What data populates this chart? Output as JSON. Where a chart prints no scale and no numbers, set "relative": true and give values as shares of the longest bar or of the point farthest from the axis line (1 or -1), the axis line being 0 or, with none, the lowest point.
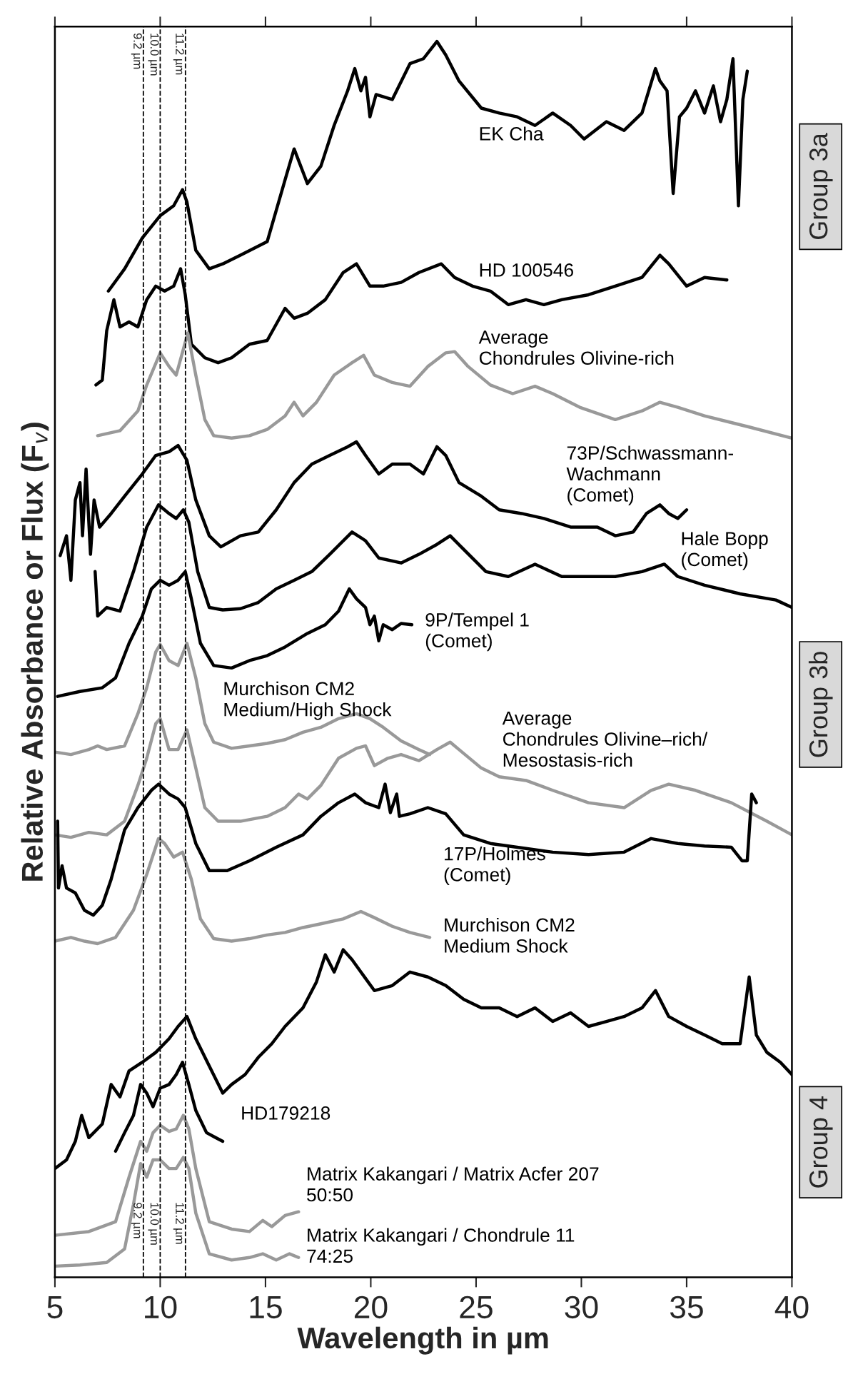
{
  "chart_data": {
    "type": "line",
    "relative": true,
    "xlabel": "Wavelength in µm",
    "ylabel": "Relative Absorbance or Flux (F$_{v}$)",
    "xlim": [
      5,
      40
    ],
    "xticks": [
      5,
      10,
      15,
      20,
      25,
      30,
      35,
      40
    ],
    "grid": false,
    "legend": false,
    "marker": "none",
    "line_style": "solid",
    "annotations": [
      "Group 3a",
      "Group 3b",
      "Group 4"
    ],
    "ref_lines": [
      {
        "axis": "x",
        "value": 9.2,
        "label": "9.2 µm",
        "color": "#000000",
        "line_style": "dashed"
      },
      {
        "axis": "x",
        "value": 10.0,
        "label": "10.0 µm",
        "color": "#000000",
        "line_style": "dashed"
      },
      {
        "axis": "x",
        "value": 11.2,
        "label": "11.2 µm",
        "color": "#000000",
        "line_style": "dashed"
      }
    ],
    "series": [
      {
        "name": "EK Cha",
        "color": "#000000",
        "x": [
          7.54,
          8.31,
          9.15,
          10.0,
          10.64,
          11.06,
          11.27,
          11.69,
          12.33,
          12.97,
          13.81,
          15.08,
          15.93,
          16.36,
          16.99,
          17.63,
          18.26,
          18.9,
          19.24,
          19.53,
          19.75,
          19.96,
          20.25,
          21.02,
          21.86,
          22.5,
          23.14,
          23.56,
          24.19,
          25.25,
          26.1,
          26.95,
          27.8,
          28.64,
          29.49,
          30.13,
          31.19,
          32.03,
          32.88,
          33.52,
          33.73,
          34.07,
          34.36,
          34.66,
          35.0,
          35.42,
          35.85,
          36.27,
          36.61,
          36.91,
          37.2,
          37.46,
          37.67,
          37.88
        ],
        "values": [
          0.798,
          0.816,
          0.841,
          0.859,
          0.867,
          0.88,
          0.87,
          0.831,
          0.816,
          0.82,
          0.827,
          0.838,
          0.888,
          0.913,
          0.885,
          0.899,
          0.932,
          0.96,
          0.978,
          0.96,
          0.971,
          0.939,
          0.957,
          0.953,
          0.982,
          0.986,
          1.0,
          0.989,
          0.968,
          0.946,
          0.942,
          0.939,
          0.932,
          0.942,
          0.932,
          0.921,
          0.935,
          0.928,
          0.942,
          0.978,
          0.968,
          0.96,
          0.877,
          0.939,
          0.946,
          0.96,
          0.942,
          0.964,
          0.935,
          0.953,
          0.986,
          0.867,
          0.953,
          0.976
        ]
      },
      {
        "name": "HD 100546",
        "color": "#000000",
        "x": [
          6.95,
          7.25,
          7.46,
          7.8,
          8.09,
          8.52,
          8.94,
          9.36,
          9.79,
          10.21,
          10.64,
          10.97,
          11.19,
          11.48,
          12.12,
          12.75,
          13.39,
          14.24,
          15.08,
          15.93,
          16.36,
          16.99,
          17.84,
          18.69,
          19.32,
          19.96,
          20.59,
          21.44,
          22.29,
          23.35,
          23.98,
          24.83,
          25.68,
          26.53,
          27.37,
          28.22,
          29.07,
          30.34,
          31.61,
          32.88,
          33.73,
          34.15,
          35.0,
          35.85,
          36.91
        ],
        "values": [
          0.722,
          0.726,
          0.766,
          0.791,
          0.769,
          0.773,
          0.769,
          0.791,
          0.802,
          0.798,
          0.802,
          0.816,
          0.795,
          0.755,
          0.744,
          0.74,
          0.744,
          0.755,
          0.758,
          0.784,
          0.776,
          0.78,
          0.791,
          0.813,
          0.82,
          0.802,
          0.802,
          0.805,
          0.813,
          0.82,
          0.809,
          0.802,
          0.798,
          0.787,
          0.791,
          0.787,
          0.791,
          0.795,
          0.802,
          0.809,
          0.827,
          0.82,
          0.802,
          0.809,
          0.807
        ]
      },
      {
        "name": "Average\nChondrules Olivine-rich",
        "color": "#999999",
        "x": [
          7.03,
          8.09,
          8.94,
          9.36,
          10.0,
          10.42,
          10.76,
          11.31,
          11.69,
          12.12,
          12.54,
          13.39,
          14.24,
          15.08,
          15.93,
          16.36,
          16.78,
          17.42,
          18.26,
          19.11,
          19.66,
          20.17,
          21.02,
          21.86,
          22.71,
          23.56,
          23.98,
          24.62,
          25.68,
          26.74,
          27.8,
          28.64,
          29.92,
          31.61,
          32.88,
          33.73,
          34.58,
          35.85,
          37.97,
          40.0
        ],
        "values": [
          0.681,
          0.685,
          0.701,
          0.722,
          0.748,
          0.737,
          0.73,
          0.764,
          0.73,
          0.694,
          0.681,
          0.679,
          0.681,
          0.686,
          0.697,
          0.708,
          0.697,
          0.708,
          0.73,
          0.74,
          0.746,
          0.73,
          0.724,
          0.721,
          0.737,
          0.748,
          0.749,
          0.737,
          0.722,
          0.715,
          0.721,
          0.715,
          0.704,
          0.694,
          0.701,
          0.708,
          0.704,
          0.697,
          0.688,
          0.679
        ]
      },
      {
        "name": "73P/Schwassmann-\nWachmann\n(Comet)",
        "color": "#000000",
        "x": [
          5.25,
          5.55,
          5.76,
          5.97,
          6.19,
          6.31,
          6.48,
          6.69,
          6.86,
          7.12,
          7.67,
          8.31,
          9.15,
          9.79,
          10.42,
          10.85,
          11.27,
          11.69,
          12.33,
          12.88,
          13.81,
          14.66,
          15.51,
          16.36,
          17.2,
          18.05,
          18.9,
          19.32,
          19.75,
          20.38,
          21.02,
          21.86,
          22.5,
          23.14,
          23.56,
          24.19,
          25.25,
          26.1,
          27.16,
          28.22,
          29.49,
          30.76,
          31.61,
          32.46,
          33.09,
          33.73,
          34.15,
          34.58,
          35.0
        ],
        "values": [
          0.584,
          0.6,
          0.564,
          0.629,
          0.643,
          0.6,
          0.654,
          0.585,
          0.629,
          0.607,
          0.618,
          0.632,
          0.65,
          0.665,
          0.668,
          0.673,
          0.661,
          0.629,
          0.6,
          0.591,
          0.6,
          0.603,
          0.621,
          0.643,
          0.658,
          0.665,
          0.672,
          0.676,
          0.665,
          0.65,
          0.658,
          0.658,
          0.65,
          0.672,
          0.665,
          0.643,
          0.632,
          0.621,
          0.618,
          0.614,
          0.607,
          0.607,
          0.6,
          0.603,
          0.618,
          0.625,
          0.618,
          0.614,
          0.621
        ]
      },
      {
        "name": "Hale Bopp\n(Comet)",
        "color": "#000000",
        "x": [
          6.91,
          7.03,
          7.46,
          8.09,
          8.73,
          9.36,
          9.92,
          10.42,
          10.76,
          11.1,
          11.36,
          11.78,
          12.33,
          12.97,
          13.81,
          14.66,
          15.51,
          16.36,
          17.2,
          18.05,
          19.11,
          19.75,
          20.38,
          21.44,
          22.29,
          23.14,
          23.77,
          24.41,
          25.47,
          26.53,
          27.8,
          29.07,
          30.34,
          31.61,
          32.88,
          33.94,
          34.58,
          35.85,
          37.54,
          39.24,
          40.0
        ],
        "values": [
          0.571,
          0.535,
          0.542,
          0.539,
          0.571,
          0.607,
          0.625,
          0.618,
          0.614,
          0.621,
          0.611,
          0.571,
          0.542,
          0.54,
          0.541,
          0.546,
          0.557,
          0.564,
          0.571,
          0.585,
          0.603,
          0.596,
          0.582,
          0.578,
          0.585,
          0.593,
          0.6,
          0.589,
          0.571,
          0.567,
          0.577,
          0.567,
          0.567,
          0.567,
          0.571,
          0.577,
          0.567,
          0.56,
          0.553,
          0.548,
          0.542
        ]
      },
      {
        "name": "9P/Tempel 1\n(Comet)",
        "color": "#000000",
        "x": [
          5.13,
          6.19,
          7.25,
          7.88,
          8.52,
          9.15,
          9.58,
          10.0,
          10.42,
          10.85,
          11.19,
          11.48,
          11.91,
          12.54,
          13.39,
          14.24,
          15.08,
          15.93,
          16.99,
          17.84,
          18.47,
          18.98,
          19.32,
          19.75,
          19.96,
          20.17,
          20.38,
          20.59,
          21.02,
          21.44,
          21.95
        ],
        "values": [
          0.47,
          0.474,
          0.477,
          0.485,
          0.513,
          0.535,
          0.557,
          0.564,
          0.56,
          0.564,
          0.571,
          0.549,
          0.513,
          0.495,
          0.493,
          0.499,
          0.503,
          0.51,
          0.521,
          0.528,
          0.539,
          0.557,
          0.549,
          0.542,
          0.528,
          0.535,
          0.515,
          0.528,
          0.524,
          0.529,
          0.528
        ]
      },
      {
        "name": "Murchison CM2\nMedium/High Shock",
        "color": "#999999",
        "x": [
          5.0,
          5.76,
          6.61,
          7.03,
          7.46,
          8.31,
          8.94,
          9.36,
          9.79,
          10.0,
          10.42,
          10.85,
          11.27,
          11.69,
          12.12,
          12.54,
          13.39,
          14.24,
          15.08,
          15.93,
          16.78,
          17.63,
          18.47,
          19.32,
          19.96,
          20.59,
          21.44,
          22.29,
          22.8
        ],
        "values": [
          0.425,
          0.423,
          0.427,
          0.43,
          0.427,
          0.43,
          0.456,
          0.477,
          0.506,
          0.512,
          0.499,
          0.495,
          0.513,
          0.485,
          0.448,
          0.433,
          0.428,
          0.43,
          0.432,
          0.435,
          0.441,
          0.445,
          0.452,
          0.456,
          0.452,
          0.445,
          0.434,
          0.427,
          0.423
        ]
      },
      {
        "name": "Average\nChondrules Olivine–rich/\nMesostasis-rich",
        "color": "#999999",
        "x": [
          5.0,
          5.76,
          6.61,
          7.46,
          8.31,
          8.94,
          9.36,
          9.79,
          10.0,
          10.42,
          10.85,
          11.27,
          11.69,
          12.12,
          12.75,
          13.81,
          15.08,
          15.93,
          16.57,
          16.99,
          17.63,
          18.47,
          19.32,
          19.75,
          20.17,
          20.81,
          21.44,
          22.29,
          23.14,
          23.77,
          24.19,
          25.25,
          26.1,
          27.37,
          28.64,
          30.34,
          32.03,
          33.31,
          34.15,
          35.42,
          37.12,
          38.81,
          40.0
        ],
        "values": [
          0.358,
          0.356,
          0.36,
          0.358,
          0.369,
          0.398,
          0.42,
          0.448,
          0.452,
          0.427,
          0.427,
          0.443,
          0.412,
          0.38,
          0.369,
          0.369,
          0.373,
          0.38,
          0.391,
          0.387,
          0.398,
          0.42,
          0.428,
          0.43,
          0.414,
          0.42,
          0.423,
          0.418,
          0.427,
          0.433,
          0.427,
          0.412,
          0.405,
          0.402,
          0.394,
          0.384,
          0.38,
          0.394,
          0.399,
          0.394,
          0.384,
          0.369,
          0.358
        ]
      },
      {
        "name": "17P/Holmes\n(Comet)",
        "color": "#000000",
        "x": [
          5.13,
          5.17,
          5.34,
          5.55,
          5.97,
          6.4,
          6.82,
          7.25,
          7.67,
          8.31,
          8.94,
          9.58,
          9.92,
          10.42,
          10.85,
          11.19,
          11.69,
          12.33,
          13.18,
          14.24,
          15.51,
          16.78,
          17.63,
          18.47,
          19.24,
          19.75,
          20.38,
          20.68,
          20.93,
          21.23,
          21.36,
          21.86,
          22.71,
          23.56,
          24.41,
          25.68,
          26.95,
          28.64,
          30.34,
          32.03,
          33.31,
          34.58,
          35.85,
          37.12,
          37.63,
          37.88,
          38.09,
          38.31
        ],
        "values": [
          0.369,
          0.315,
          0.333,
          0.315,
          0.311,
          0.297,
          0.293,
          0.301,
          0.322,
          0.362,
          0.38,
          0.394,
          0.399,
          0.391,
          0.387,
          0.38,
          0.351,
          0.329,
          0.329,
          0.337,
          0.348,
          0.358,
          0.373,
          0.384,
          0.391,
          0.384,
          0.38,
          0.399,
          0.376,
          0.391,
          0.373,
          0.375,
          0.38,
          0.375,
          0.358,
          0.351,
          0.348,
          0.344,
          0.342,
          0.344,
          0.355,
          0.351,
          0.349,
          0.348,
          0.337,
          0.337,
          0.391,
          0.384
        ]
      },
      {
        "name": "Murchison CM2\nMedium Shock",
        "color": "#999999",
        "x": [
          5.0,
          5.76,
          6.4,
          7.03,
          7.88,
          8.73,
          9.36,
          9.92,
          10.21,
          10.64,
          11.06,
          11.48,
          11.91,
          12.54,
          13.39,
          14.24,
          15.08,
          15.93,
          16.78,
          17.63,
          18.69,
          19.53,
          20.17,
          21.02,
          21.86,
          22.8
        ],
        "values": [
          0.272,
          0.275,
          0.272,
          0.27,
          0.275,
          0.297,
          0.326,
          0.355,
          0.351,
          0.34,
          0.344,
          0.322,
          0.29,
          0.274,
          0.272,
          0.274,
          0.277,
          0.279,
          0.283,
          0.286,
          0.29,
          0.296,
          0.291,
          0.284,
          0.279,
          0.275
        ]
      },
      {
        "color": "#000000",
        "x": [
          5.0,
          5.55,
          5.97,
          6.27,
          6.61,
          7.25,
          7.67,
          8.09,
          8.52,
          9.15,
          9.79,
          10.42,
          10.85,
          11.27,
          11.69,
          12.33,
          12.97,
          13.39,
          14.03,
          14.66,
          15.3,
          15.93,
          16.78,
          17.42,
          17.84,
          18.26,
          18.69,
          19.11,
          19.53,
          20.17,
          21.02,
          21.86,
          22.71,
          23.56,
          24.41,
          25.25,
          26.1,
          26.95,
          27.8,
          28.64,
          29.49,
          30.34,
          31.19,
          32.03,
          32.88,
          33.52,
          34.15,
          35.0,
          35.85,
          36.69,
          37.54,
          37.97,
          38.31,
          38.81,
          39.45,
          40.0
        ],
        "values": [
          0.088,
          0.095,
          0.11,
          0.131,
          0.113,
          0.124,
          0.156,
          0.146,
          0.167,
          0.174,
          0.182,
          0.193,
          0.203,
          0.211,
          0.193,
          0.171,
          0.149,
          0.156,
          0.164,
          0.178,
          0.189,
          0.203,
          0.218,
          0.239,
          0.261,
          0.247,
          0.265,
          0.257,
          0.247,
          0.232,
          0.236,
          0.247,
          0.243,
          0.236,
          0.225,
          0.218,
          0.218,
          0.211,
          0.218,
          0.207,
          0.214,
          0.203,
          0.207,
          0.211,
          0.218,
          0.232,
          0.211,
          0.203,
          0.196,
          0.189,
          0.189,
          0.243,
          0.196,
          0.182,
          0.174,
          0.164
        ]
      },
      {
        "name": "HD179218",
        "color": "#000000",
        "x": [
          7.88,
          8.31,
          8.73,
          9.07,
          9.36,
          9.66,
          10.0,
          10.42,
          10.76,
          11.06,
          11.36,
          11.69,
          12.2,
          12.63,
          12.97
        ],
        "values": [
          0.102,
          0.117,
          0.131,
          0.156,
          0.149,
          0.138,
          0.153,
          0.156,
          0.164,
          0.174,
          0.156,
          0.135,
          0.117,
          0.113,
          0.11
        ]
      },
      {
        "name": "Matrix Kakangari / Matrix Acfer 207\n50:50",
        "color": "#999999",
        "x": [
          5.0,
          6.61,
          7.88,
          8.52,
          9.07,
          9.36,
          9.66,
          10.0,
          10.42,
          10.76,
          11.1,
          11.36,
          11.69,
          12.33,
          13.39,
          14.24,
          14.87,
          15.3,
          15.93,
          16.57
        ],
        "values": [
          0.034,
          0.037,
          0.045,
          0.081,
          0.11,
          0.102,
          0.117,
          0.123,
          0.118,
          0.12,
          0.131,
          0.12,
          0.088,
          0.045,
          0.039,
          0.037,
          0.046,
          0.041,
          0.05,
          0.053
        ]
      },
      {
        "name": "Matrix Kakangari / Chondrule 11\n74:25",
        "color": "#999999",
        "x": [
          5.0,
          6.19,
          7.46,
          8.31,
          8.73,
          9.07,
          9.36,
          9.66,
          10.0,
          10.42,
          10.76,
          11.1,
          11.36,
          11.69,
          12.33,
          13.39,
          14.24,
          14.87,
          15.51,
          16.14,
          16.57
        ],
        "values": [
          0.009,
          0.01,
          0.012,
          0.023,
          0.059,
          0.092,
          0.081,
          0.095,
          0.095,
          0.088,
          0.088,
          0.097,
          0.088,
          0.052,
          0.019,
          0.014,
          0.016,
          0.019,
          0.014,
          0.019,
          0.016
        ]
      }
    ]
  }
}
